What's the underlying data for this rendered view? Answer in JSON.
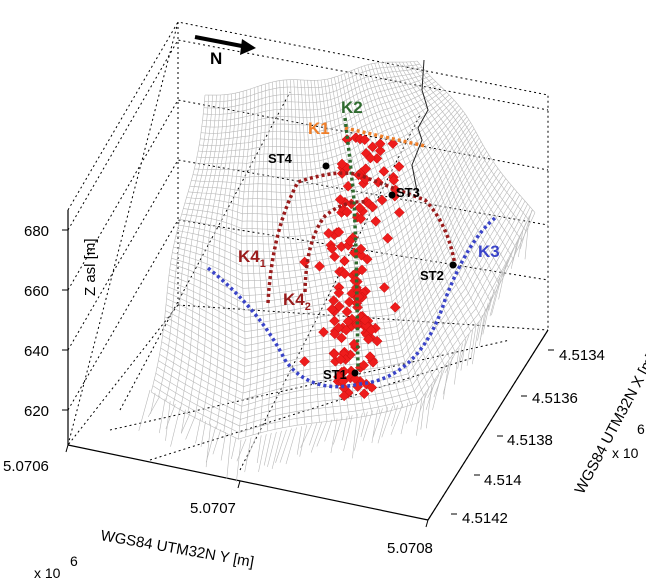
{
  "colors": {
    "mesh": "#b9b9b9",
    "event": "#ee1c1c",
    "K1": "#ef7f2a",
    "K2": "#2f6b2f",
    "K3": "#3a44c8",
    "K4": "#9a1b1b"
  },
  "chart_data": {
    "type": "scatter3d",
    "z_label": "Z asl [m]",
    "z_ticks": [
      "680",
      "660",
      "640",
      "620"
    ],
    "x_label": "WGS84 UTM32N X [m]",
    "x_ticks": [
      "4.5134",
      "4.5136",
      "4.5138",
      "4.514",
      "4.5142"
    ],
    "x_exponent": "x 10",
    "x_exponent_power": "6",
    "y_label": "WGS84 UTM32N Y [m]",
    "y_ticks": [
      "5.0706",
      "5.0707",
      "5.0708"
    ],
    "y_exponent": "x 10",
    "y_exponent_power": "6",
    "north_label": "N",
    "stations": [
      "ST1",
      "ST2",
      "ST3",
      "ST4"
    ],
    "zones": [
      {
        "id": "K1",
        "label": "K1",
        "sub": ""
      },
      {
        "id": "K2",
        "label": "K2",
        "sub": ""
      },
      {
        "id": "K3",
        "label": "K3",
        "sub": ""
      },
      {
        "id": "K4_1",
        "label": "K4",
        "sub": "1"
      },
      {
        "id": "K4_2",
        "label": "K4",
        "sub": "2"
      }
    ],
    "series": [
      {
        "marker": "diamond",
        "point_count": 160
      }
    ]
  }
}
